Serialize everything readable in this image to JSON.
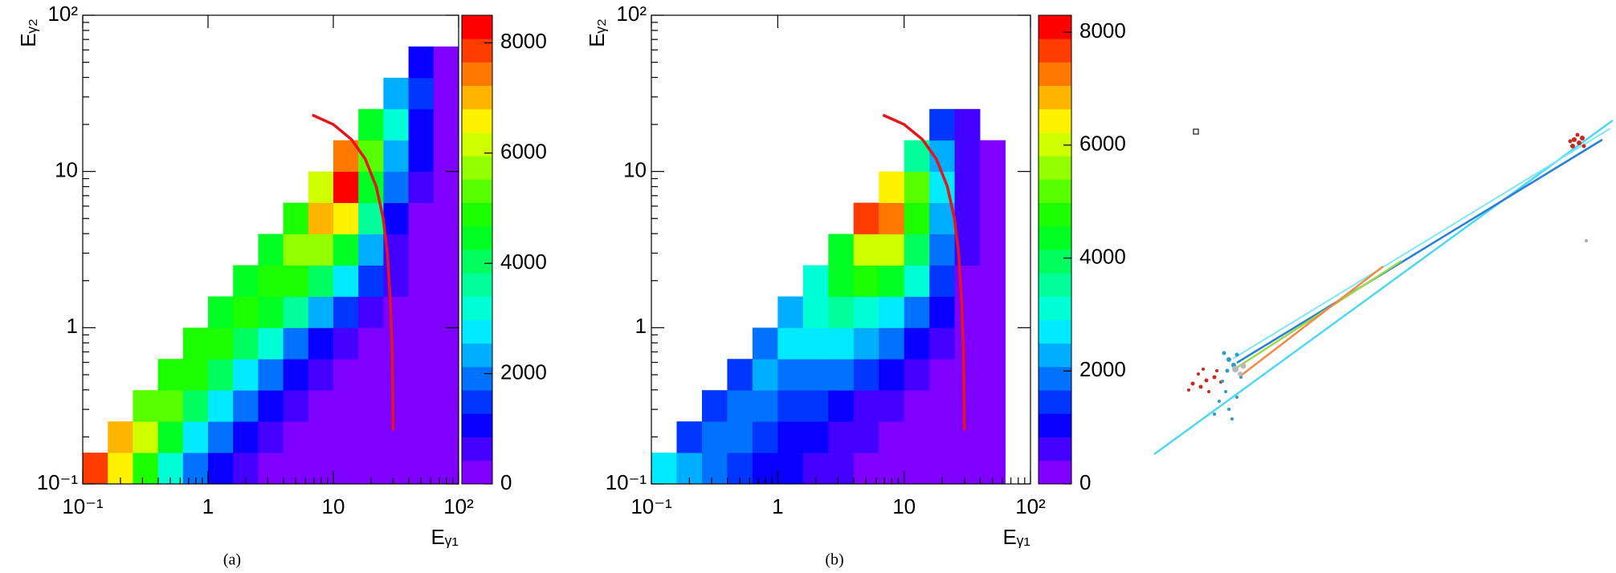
{
  "chart_data": [
    {
      "type": "heatmap",
      "xlabel": "Eᵧ₁",
      "ylabel": "Eᵧ₂",
      "caption": "(a)",
      "xlog": true,
      "ylog": true,
      "xlim": [
        0.1,
        100
      ],
      "ylim": [
        0.1,
        100
      ],
      "xticks": [
        {
          "value": 0.1,
          "label": "10⁻¹"
        },
        1,
        10,
        {
          "value": 100,
          "label": "10²"
        }
      ],
      "yticks": [
        {
          "value": 0.1,
          "label": "10⁻¹"
        },
        1,
        10,
        {
          "value": 100,
          "label": "10²"
        }
      ],
      "zlim": [
        0,
        8500
      ],
      "zticks": [
        0,
        2000,
        4000,
        6000,
        8000
      ],
      "xbins": [
        0.1,
        0.1585,
        0.2512,
        0.3981,
        0.631,
        1,
        1.585,
        2.512,
        3.981,
        6.31,
        10,
        15.85,
        25.12,
        39.81,
        63.1,
        100
      ],
      "ybins": [
        0.1,
        0.1585,
        0.2512,
        0.3981,
        0.631,
        1,
        1.585,
        2.512,
        3.981,
        6.31,
        10,
        15.85,
        25.12,
        39.81,
        63.1,
        100
      ],
      "values": [
        [
          8000,
          6500,
          5000,
          3000,
          1800,
          1000,
          600,
          300,
          200,
          150,
          100,
          100,
          100,
          100,
          50
        ],
        [
          null,
          7000,
          6000,
          4500,
          2800,
          1800,
          1000,
          600,
          300,
          200,
          150,
          100,
          100,
          100,
          50
        ],
        [
          null,
          null,
          5500,
          5500,
          4000,
          2800,
          1800,
          1000,
          500,
          300,
          200,
          150,
          100,
          100,
          50
        ],
        [
          null,
          null,
          null,
          5000,
          5000,
          4000,
          2800,
          1800,
          900,
          500,
          300,
          200,
          150,
          100,
          50
        ],
        [
          null,
          null,
          null,
          null,
          4800,
          4800,
          4000,
          3000,
          2000,
          1200,
          600,
          400,
          200,
          100,
          50
        ],
        [
          null,
          null,
          null,
          null,
          null,
          4600,
          4800,
          4300,
          3500,
          2500,
          1500,
          800,
          300,
          150,
          50
        ],
        [
          null,
          null,
          null,
          null,
          null,
          null,
          4600,
          5000,
          4800,
          4000,
          2800,
          1500,
          500,
          200,
          50
        ],
        [
          null,
          null,
          null,
          null,
          null,
          null,
          null,
          4600,
          5600,
          5800,
          4500,
          2500,
          800,
          300,
          50
        ],
        [
          null,
          null,
          null,
          null,
          null,
          null,
          null,
          null,
          5000,
          7200,
          6500,
          3500,
          1200,
          400,
          100
        ],
        [
          null,
          null,
          null,
          null,
          null,
          null,
          null,
          null,
          null,
          6000,
          8200,
          4500,
          1800,
          600,
          100
        ],
        [
          null,
          null,
          null,
          null,
          null,
          null,
          null,
          null,
          null,
          null,
          7500,
          5500,
          2500,
          900,
          150
        ],
        [
          null,
          null,
          null,
          null,
          null,
          null,
          null,
          null,
          null,
          null,
          null,
          4500,
          3000,
          1200,
          200
        ],
        [
          null,
          null,
          null,
          null,
          null,
          null,
          null,
          null,
          null,
          null,
          null,
          null,
          2500,
          1500,
          300
        ],
        [
          null,
          null,
          null,
          null,
          null,
          null,
          null,
          null,
          null,
          null,
          null,
          null,
          null,
          1000,
          400
        ],
        [
          null,
          null,
          null,
          null,
          null,
          null,
          null,
          null,
          null,
          null,
          null,
          null,
          null,
          null,
          null
        ]
      ],
      "curve": {
        "color": "#e8141b",
        "x": [
          6.8,
          10,
          14,
          18,
          22,
          25,
          27,
          28.5,
          29.5,
          30
        ],
        "y": [
          23,
          20,
          16,
          12,
          8,
          5,
          3,
          1.5,
          0.7,
          0.22
        ]
      }
    },
    {
      "type": "heatmap",
      "xlabel": "Eᵧ₁",
      "ylabel": "Eᵧ₂",
      "caption": "(b)",
      "xlog": true,
      "ylog": true,
      "xlim": [
        0.1,
        100
      ],
      "ylim": [
        0.1,
        100
      ],
      "xticks": [
        {
          "value": 0.1,
          "label": "10⁻¹"
        },
        1,
        10,
        {
          "value": 100,
          "label": "10²"
        }
      ],
      "yticks": [
        {
          "value": 0.1,
          "label": "10⁻¹"
        },
        1,
        10,
        {
          "value": 100,
          "label": "10²"
        }
      ],
      "zlim": [
        0,
        8300
      ],
      "zticks": [
        0,
        2000,
        4000,
        6000,
        8000
      ],
      "xbins": [
        0.1,
        0.1585,
        0.2512,
        0.3981,
        0.631,
        1,
        1.585,
        2.512,
        3.981,
        6.31,
        10,
        15.85,
        25.12,
        39.81,
        63.1,
        100
      ],
      "ybins": [
        0.1,
        0.1585,
        0.2512,
        0.3981,
        0.631,
        1,
        1.585,
        2.512,
        3.981,
        6.31,
        10,
        15.85,
        25.12,
        39.81,
        63.1,
        100
      ],
      "values": [
        [
          2800,
          2200,
          1800,
          1500,
          1200,
          1000,
          800,
          600,
          400,
          300,
          200,
          150,
          100,
          50,
          null
        ],
        [
          null,
          1500,
          2000,
          1800,
          1400,
          1200,
          1000,
          800,
          500,
          300,
          200,
          150,
          100,
          50,
          null
        ],
        [
          null,
          null,
          1400,
          2000,
          1800,
          1600,
          1400,
          1100,
          800,
          500,
          300,
          200,
          100,
          50,
          null
        ],
        [
          null,
          null,
          null,
          1500,
          2200,
          2000,
          1900,
          1700,
          1400,
          900,
          500,
          300,
          150,
          50,
          null
        ],
        [
          null,
          null,
          null,
          null,
          1800,
          2600,
          2600,
          2500,
          2300,
          1900,
          1200,
          600,
          200,
          50,
          null
        ],
        [
          null,
          null,
          null,
          null,
          null,
          2400,
          3300,
          3400,
          3300,
          2800,
          2000,
          900,
          300,
          50,
          null
        ],
        [
          null,
          null,
          null,
          null,
          null,
          null,
          3000,
          4400,
          4700,
          4200,
          3000,
          1500,
          400,
          50,
          null
        ],
        [
          null,
          null,
          null,
          null,
          null,
          null,
          null,
          4500,
          6200,
          6000,
          4000,
          2000,
          600,
          100,
          null
        ],
        [
          null,
          null,
          null,
          null,
          null,
          null,
          null,
          null,
          7800,
          7400,
          4800,
          2400,
          700,
          100,
          null
        ],
        [
          null,
          null,
          null,
          null,
          null,
          null,
          null,
          null,
          null,
          6500,
          5000,
          2600,
          800,
          100,
          null
        ],
        [
          null,
          null,
          null,
          null,
          null,
          null,
          null,
          null,
          null,
          null,
          3600,
          2400,
          800,
          100,
          null
        ],
        [
          null,
          null,
          null,
          null,
          null,
          null,
          null,
          null,
          null,
          null,
          null,
          1500,
          600,
          null,
          null
        ],
        [
          null,
          null,
          null,
          null,
          null,
          null,
          null,
          null,
          null,
          null,
          null,
          null,
          null,
          null,
          null
        ],
        [
          null,
          null,
          null,
          null,
          null,
          null,
          null,
          null,
          null,
          null,
          null,
          null,
          null,
          null,
          null
        ],
        [
          null,
          null,
          null,
          null,
          null,
          null,
          null,
          null,
          null,
          null,
          null,
          null,
          null,
          null,
          null
        ]
      ],
      "curve": {
        "color": "#e8141b",
        "x": [
          6.8,
          10,
          14,
          18,
          22,
          25,
          27,
          28.5,
          29.5,
          30
        ],
        "y": [
          23,
          20,
          16,
          12,
          8,
          5,
          3,
          1.5,
          0.7,
          0.22
        ]
      }
    }
  ]
}
